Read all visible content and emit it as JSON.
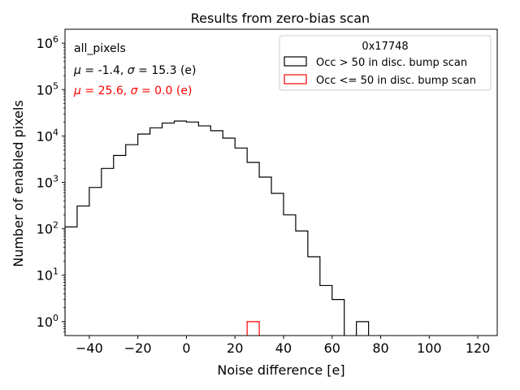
{
  "chart_data": {
    "type": "histogram",
    "title": "Results from zero-bias scan",
    "xlabel": "Noise difference [e]",
    "ylabel": "Number of enabled pixels",
    "xlim": [
      -50,
      128
    ],
    "ylim_log10": [
      -0.3,
      6.3
    ],
    "yscale": "log",
    "x_ticks": [
      -40,
      -20,
      0,
      20,
      40,
      60,
      80,
      100,
      120
    ],
    "x_tick_labels": [
      "−40",
      "−20",
      "0",
      "20",
      "40",
      "60",
      "80",
      "100",
      "120"
    ],
    "y_ticks_exp": [
      0,
      1,
      2,
      3,
      4,
      5,
      6
    ],
    "y_tick_base": "10",
    "legend": {
      "title": "0x17748",
      "position": "top-right",
      "entries": [
        {
          "label": "Occ > 50 in disc. bump scan",
          "color": "#000000"
        },
        {
          "label": "Occ <= 50 in disc. bump scan",
          "color": "#ff0000"
        }
      ]
    },
    "annotations": {
      "label": "all_pixels",
      "stats_black": {
        "mu_sym": "μ",
        "sigma_sym": "σ",
        "mu": "-1.4",
        "sigma": "15.3",
        "unit": "(e)"
      },
      "stats_red": {
        "mu_sym": "μ",
        "sigma_sym": "σ",
        "mu": "25.6",
        "sigma": "0.0",
        "unit": "(e)"
      }
    },
    "series": [
      {
        "name": "Occ > 50 in disc. bump scan",
        "color": "#000000",
        "bin_edges": [
          -50,
          -45,
          -40,
          -35,
          -30,
          -25,
          -20,
          -15,
          -10,
          -5,
          0,
          5,
          10,
          15,
          20,
          25,
          30,
          35,
          40,
          45,
          50,
          55,
          60,
          65,
          70,
          75
        ],
        "counts": [
          110,
          310,
          780,
          2000,
          3800,
          6500,
          11000,
          15000,
          19000,
          21000,
          20000,
          16500,
          13000,
          9000,
          5500,
          2700,
          1300,
          580,
          200,
          90,
          25,
          6,
          3,
          0,
          1
        ]
      },
      {
        "name": "Occ <= 50 in disc. bump scan",
        "color": "#ff0000",
        "bin_edges": [
          25,
          30
        ],
        "counts": [
          1
        ]
      }
    ]
  }
}
